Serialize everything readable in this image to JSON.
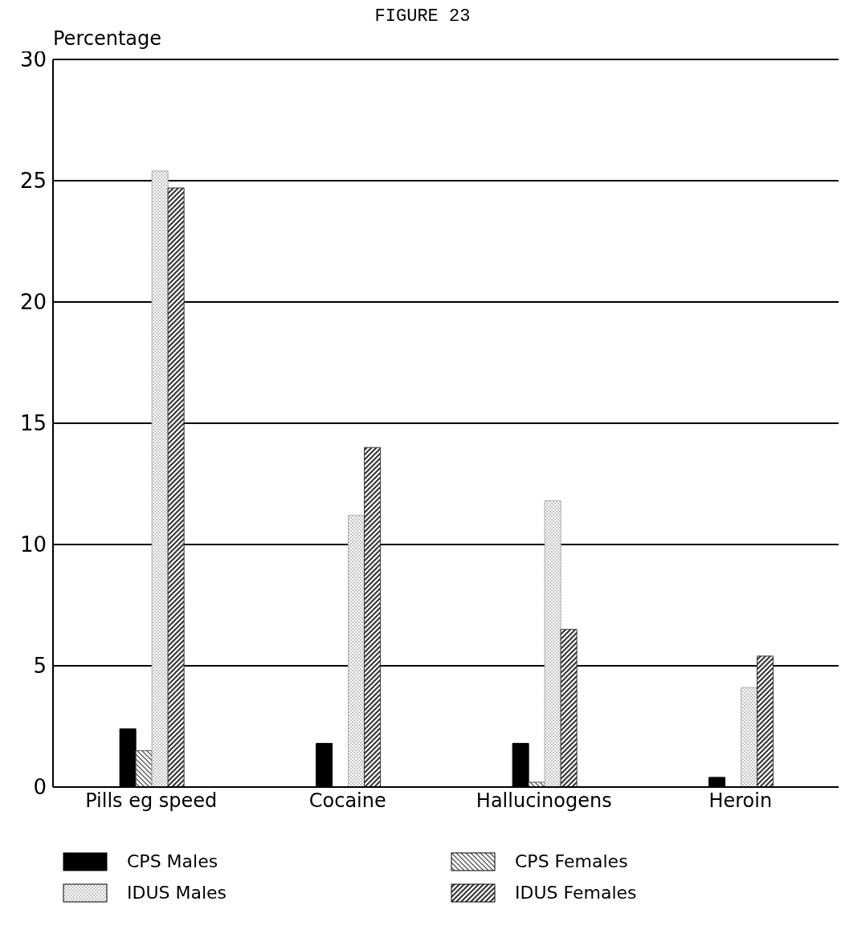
{
  "chart_data": {
    "type": "bar",
    "title": "FIGURE 23",
    "ylabel": "Percentage",
    "categories": [
      "Pills eg speed",
      "Cocaine",
      "Hallucinogens",
      "Heroin"
    ],
    "series": [
      {
        "name": "CPS Males",
        "color": "#000000",
        "values": [
          2.4,
          1.8,
          1.8,
          0.4
        ]
      },
      {
        "name": "CPS Females",
        "color": "#555555",
        "values": [
          1.5,
          0,
          0.2,
          0
        ]
      },
      {
        "name": "IDUS Males",
        "color": "#aaaaaa",
        "values": [
          25.4,
          11.2,
          11.8,
          4.1
        ]
      },
      {
        "name": "IDUS Females",
        "color": "#333333",
        "values": [
          24.7,
          14.0,
          6.5,
          5.4
        ]
      }
    ],
    "ylim": [
      0,
      30
    ],
    "yticks": [
      0,
      5,
      10,
      15,
      20,
      25,
      30
    ],
    "grid": "y",
    "legend": "bottom"
  }
}
